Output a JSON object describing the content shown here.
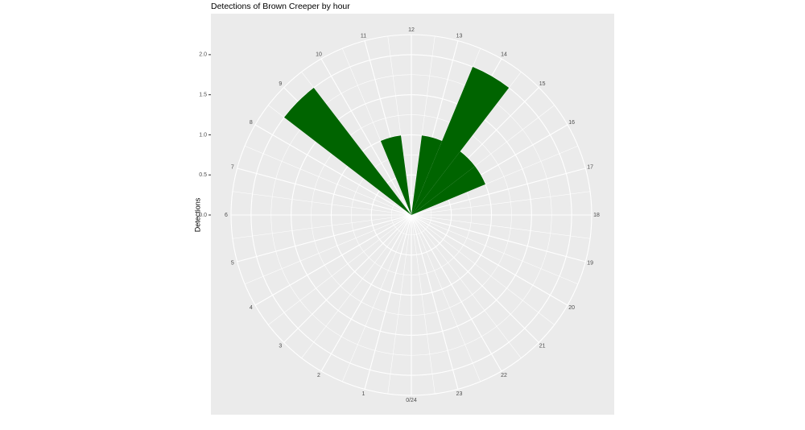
{
  "chart_data": {
    "type": "bar",
    "coord": "polar",
    "title": "Detections of Brown Creeper by hour",
    "xlabel": "",
    "ylabel": "Detections",
    "categories": [
      "0/24",
      "1",
      "2",
      "3",
      "4",
      "5",
      "6",
      "7",
      "8",
      "9",
      "10",
      "11",
      "12",
      "13",
      "14",
      "15",
      "16",
      "17",
      "18",
      "19",
      "20",
      "21",
      "22",
      "23"
    ],
    "values": [
      0,
      0,
      0,
      0,
      0,
      0,
      0,
      0,
      0,
      2,
      0,
      1,
      0,
      1,
      2,
      1,
      1,
      0,
      0,
      0,
      0,
      0,
      0,
      0
    ],
    "y_ticks": [
      "0.0",
      "0.5",
      "1.0",
      "1.5",
      "2.0"
    ],
    "ylim": [
      0,
      2.25
    ],
    "bar_color": "#006400",
    "panel_color": "#ebebeb",
    "grid_color": "#ffffff",
    "grid": true
  }
}
